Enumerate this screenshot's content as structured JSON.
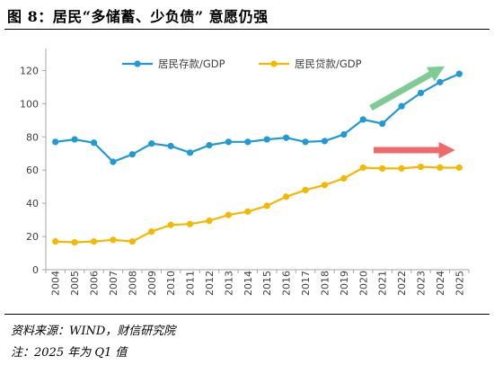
{
  "title": "图 8：居民“多储蓄、少负债” 意愿仍强",
  "source": "资料来源：WIND，财信研究院",
  "note": "注：2025 年为 Q1 值",
  "colors": {
    "deposit": "#1f9ad6",
    "loan": "#f5b800",
    "arrow_green": "#7ecb93",
    "arrow_red": "#ef6b6b",
    "axis": "#a6a6a6"
  },
  "chart_data": {
    "type": "line",
    "categories": [
      "2004",
      "2005",
      "2006",
      "2007",
      "2008",
      "2009",
      "2010",
      "2011",
      "2012",
      "2013",
      "2014",
      "2015",
      "2016",
      "2017",
      "2018",
      "2019",
      "2020",
      "2021",
      "2022",
      "2023",
      "2024",
      "2025"
    ],
    "series": [
      {
        "name": "居民存款/GDP",
        "values": [
          77,
          78.5,
          76.5,
          65,
          69.5,
          76,
          74.5,
          70.5,
          75,
          77,
          77,
          78.5,
          79.5,
          77,
          77.5,
          81.5,
          90.5,
          88,
          98.5,
          106.5,
          113,
          118
        ]
      },
      {
        "name": "居民贷款/GDP",
        "values": [
          17,
          16.5,
          17,
          18,
          17,
          23,
          27,
          27.5,
          29.5,
          33,
          35,
          38.5,
          44,
          48,
          51,
          55,
          61.5,
          61,
          61,
          62,
          61.5,
          61.5
        ]
      }
    ],
    "yticks": [
      0,
      20,
      40,
      60,
      80,
      100,
      120
    ],
    "ylim": [
      0,
      130
    ],
    "legend_position": "top",
    "grid": false
  }
}
